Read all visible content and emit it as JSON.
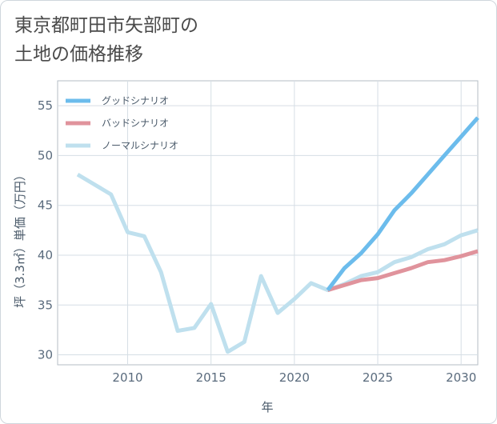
{
  "title_line1": "東京都町田市矢部町の",
  "title_line2": "土地の価格推移",
  "chart_data": {
    "type": "line",
    "xlabel": "年",
    "ylabel": "坪（3.3㎡）単価（万円）",
    "xlim": [
      2005.8,
      2031
    ],
    "ylim": [
      29,
      57.5
    ],
    "xticks": [
      2010,
      2015,
      2020,
      2025,
      2030
    ],
    "yticks": [
      30,
      35,
      40,
      45,
      50,
      55
    ],
    "grid": true,
    "legend_position": "top-left",
    "series": [
      {
        "name": "グッドシナリオ",
        "color": "#6cbcec",
        "x": [
          2022,
          2023,
          2024,
          2025,
          2026,
          2027,
          2028,
          2029,
          2030,
          2031
        ],
        "values": [
          36.5,
          38.7,
          40.2,
          42.1,
          44.5,
          46.2,
          48.1,
          50.0,
          51.9,
          53.8
        ]
      },
      {
        "name": "バッドシナリオ",
        "color": "#e0939c",
        "x": [
          2022,
          2023,
          2024,
          2025,
          2026,
          2027,
          2028,
          2029,
          2030,
          2031
        ],
        "values": [
          36.5,
          37.0,
          37.5,
          37.7,
          38.2,
          38.7,
          39.3,
          39.5,
          39.9,
          40.4
        ]
      },
      {
        "name": "ノーマルシナリオ",
        "color": "#bfe0ee",
        "x": [
          2007,
          2008,
          2009,
          2010,
          2011,
          2012,
          2013,
          2014,
          2015,
          2016,
          2017,
          2018,
          2019,
          2020,
          2021,
          2022,
          2023,
          2024,
          2025,
          2026,
          2027,
          2028,
          2029,
          2030,
          2031
        ],
        "values": [
          48.1,
          47.1,
          46.1,
          42.3,
          41.9,
          38.3,
          32.4,
          32.7,
          35.1,
          30.3,
          31.3,
          37.9,
          34.2,
          35.6,
          37.2,
          36.5,
          37.1,
          37.9,
          38.3,
          39.3,
          39.8,
          40.6,
          41.1,
          42.0,
          42.5
        ]
      }
    ]
  }
}
